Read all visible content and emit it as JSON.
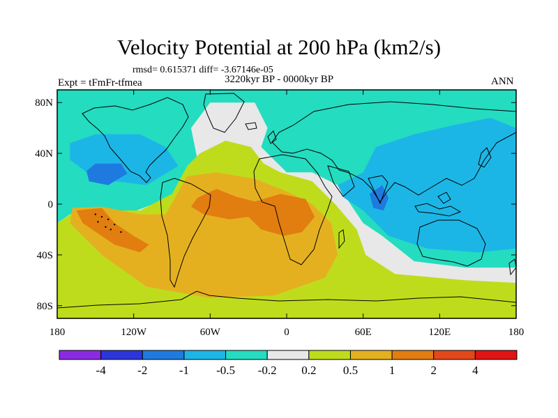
{
  "figure": {
    "title": "Velocity Potential at 200 hPa (km2/s)",
    "stats": "rmsd= 0.615371  diff= -3.67146e-05",
    "experiment": "Expt = tFmFr-tfmea",
    "period": "3220kyr BP - 0000kyr BP",
    "season": "ANN"
  },
  "axes": {
    "x_ticks": [
      "180",
      "120W",
      "60W",
      "0",
      "60E",
      "120E",
      "180"
    ],
    "x_values": [
      -180,
      -120,
      -60,
      0,
      60,
      120,
      180
    ],
    "y_ticks": [
      "80N",
      "40N",
      "0",
      "40S",
      "80S"
    ],
    "y_values": [
      80,
      40,
      0,
      -40,
      -80
    ],
    "xlim": [
      -180,
      180
    ],
    "ylim": [
      -90,
      90
    ]
  },
  "colorbar": {
    "colors": [
      "#8a2be2",
      "#2c36d9",
      "#1f7ae0",
      "#1cb6e6",
      "#24dcc0",
      "#e8e8e8",
      "#bfdc1c",
      "#e5b020",
      "#e27d10",
      "#e2481a",
      "#e01414"
    ],
    "labels": [
      "-4",
      "-2",
      "-1",
      "-0.5",
      "-0.2",
      "0.2",
      "0.5",
      "1",
      "2",
      "4"
    ]
  },
  "chart_data": {
    "type": "heatmap",
    "title": "Velocity Potential at 200 hPa (km2/s)",
    "xlabel": "",
    "ylabel": "",
    "xlim": [
      -180,
      180
    ],
    "ylim": [
      -90,
      90
    ],
    "levels": [
      -4,
      -2,
      -1,
      -0.5,
      -0.2,
      0.2,
      0.5,
      1,
      2,
      4
    ],
    "background_color": "#24dcc0",
    "regions": [
      {
        "name": "neutral",
        "color": "#e8e8e8",
        "lonlat": [
          [
            -180,
            -15
          ],
          [
            -170,
            -8
          ],
          [
            -125,
            -8
          ],
          [
            -80,
            10
          ],
          [
            -70,
            35
          ],
          [
            -75,
            60
          ],
          [
            -60,
            80
          ],
          [
            -25,
            80
          ],
          [
            -15,
            60
          ],
          [
            -20,
            45
          ],
          [
            -10,
            35
          ],
          [
            0,
            25
          ],
          [
            20,
            25
          ],
          [
            40,
            15
          ],
          [
            50,
            0
          ],
          [
            60,
            -15
          ],
          [
            75,
            -25
          ],
          [
            100,
            -45
          ],
          [
            140,
            -50
          ],
          [
            180,
            -50
          ],
          [
            180,
            -90
          ],
          [
            -180,
            -90
          ]
        ]
      },
      {
        "name": "positive_0.2",
        "color": "#bfdc1c",
        "lonlat": [
          [
            -180,
            -35
          ],
          [
            -180,
            -15
          ],
          [
            -165,
            -5
          ],
          [
            -115,
            -5
          ],
          [
            -90,
            8
          ],
          [
            -78,
            30
          ],
          [
            -68,
            40
          ],
          [
            -48,
            50
          ],
          [
            -28,
            45
          ],
          [
            -18,
            32
          ],
          [
            -5,
            25
          ],
          [
            20,
            18
          ],
          [
            38,
            0
          ],
          [
            55,
            -20
          ],
          [
            62,
            -40
          ],
          [
            85,
            -55
          ],
          [
            140,
            -60
          ],
          [
            180,
            -62
          ],
          [
            180,
            -90
          ],
          [
            -180,
            -90
          ]
        ]
      },
      {
        "name": "positive_0.5",
        "color": "#e5b020",
        "lonlat": [
          [
            -168,
            -3
          ],
          [
            -145,
            -2
          ],
          [
            -115,
            -8
          ],
          [
            -95,
            -8
          ],
          [
            -78,
            22
          ],
          [
            -55,
            25
          ],
          [
            -25,
            20
          ],
          [
            0,
            10
          ],
          [
            20,
            0
          ],
          [
            35,
            -15
          ],
          [
            40,
            -40
          ],
          [
            30,
            -58
          ],
          [
            -10,
            -72
          ],
          [
            -60,
            -74
          ],
          [
            -110,
            -65
          ],
          [
            -145,
            -40
          ],
          [
            -170,
            -15
          ]
        ]
      },
      {
        "name": "positive_1",
        "color": "#e27d10",
        "lonlat": [
          [
            -165,
            -5
          ],
          [
            -145,
            -3
          ],
          [
            -135,
            -15
          ],
          [
            -120,
            -25
          ],
          [
            -108,
            -32
          ],
          [
            -115,
            -38
          ],
          [
            -135,
            -32
          ],
          [
            -160,
            -15
          ]
        ]
      },
      {
        "name": "positive_1",
        "color": "#e27d10",
        "lonlat": [
          [
            -70,
            5
          ],
          [
            -55,
            12
          ],
          [
            -40,
            6
          ],
          [
            -25,
            2
          ],
          [
            -5,
            8
          ],
          [
            15,
            4
          ],
          [
            22,
            -10
          ],
          [
            12,
            -22
          ],
          [
            -2,
            -25
          ],
          [
            -20,
            -20
          ],
          [
            -30,
            -10
          ],
          [
            -45,
            -12
          ],
          [
            -65,
            -8
          ],
          [
            -75,
            -2
          ]
        ]
      },
      {
        "name": "negative_0.5",
        "color": "#1cb6e6",
        "lonlat": [
          [
            -170,
            48
          ],
          [
            -150,
            55
          ],
          [
            -115,
            55
          ],
          [
            -95,
            45
          ],
          [
            -85,
            30
          ],
          [
            -110,
            15
          ],
          [
            -150,
            20
          ],
          [
            -170,
            35
          ]
        ]
      },
      {
        "name": "negative_0.5",
        "color": "#1cb6e6",
        "lonlat": [
          [
            40,
            15
          ],
          [
            60,
            25
          ],
          [
            70,
            45
          ],
          [
            100,
            55
          ],
          [
            130,
            62
          ],
          [
            160,
            68
          ],
          [
            180,
            60
          ],
          [
            180,
            -35
          ],
          [
            150,
            -38
          ],
          [
            110,
            -35
          ],
          [
            80,
            -25
          ],
          [
            60,
            -5
          ],
          [
            45,
            5
          ]
        ]
      },
      {
        "name": "negative_1",
        "color": "#1f7ae0",
        "lonlat": [
          [
            -157,
            26
          ],
          [
            -150,
            32
          ],
          [
            -130,
            32
          ],
          [
            -125,
            24
          ],
          [
            -140,
            15
          ],
          [
            -155,
            18
          ]
        ]
      },
      {
        "name": "negative_1",
        "color": "#1f7ae0",
        "lonlat": [
          [
            65,
            8
          ],
          [
            75,
            15
          ],
          [
            80,
            5
          ],
          [
            76,
            -5
          ],
          [
            68,
            -3
          ]
        ]
      }
    ],
    "dots": [
      [
        -145,
        -10
      ],
      [
        -140,
        -12
      ],
      [
        -148,
        -14
      ],
      [
        -135,
        -16
      ],
      [
        -138,
        -20
      ],
      [
        -130,
        -22
      ],
      [
        -142,
        -18
      ],
      [
        -150,
        -8
      ]
    ]
  }
}
